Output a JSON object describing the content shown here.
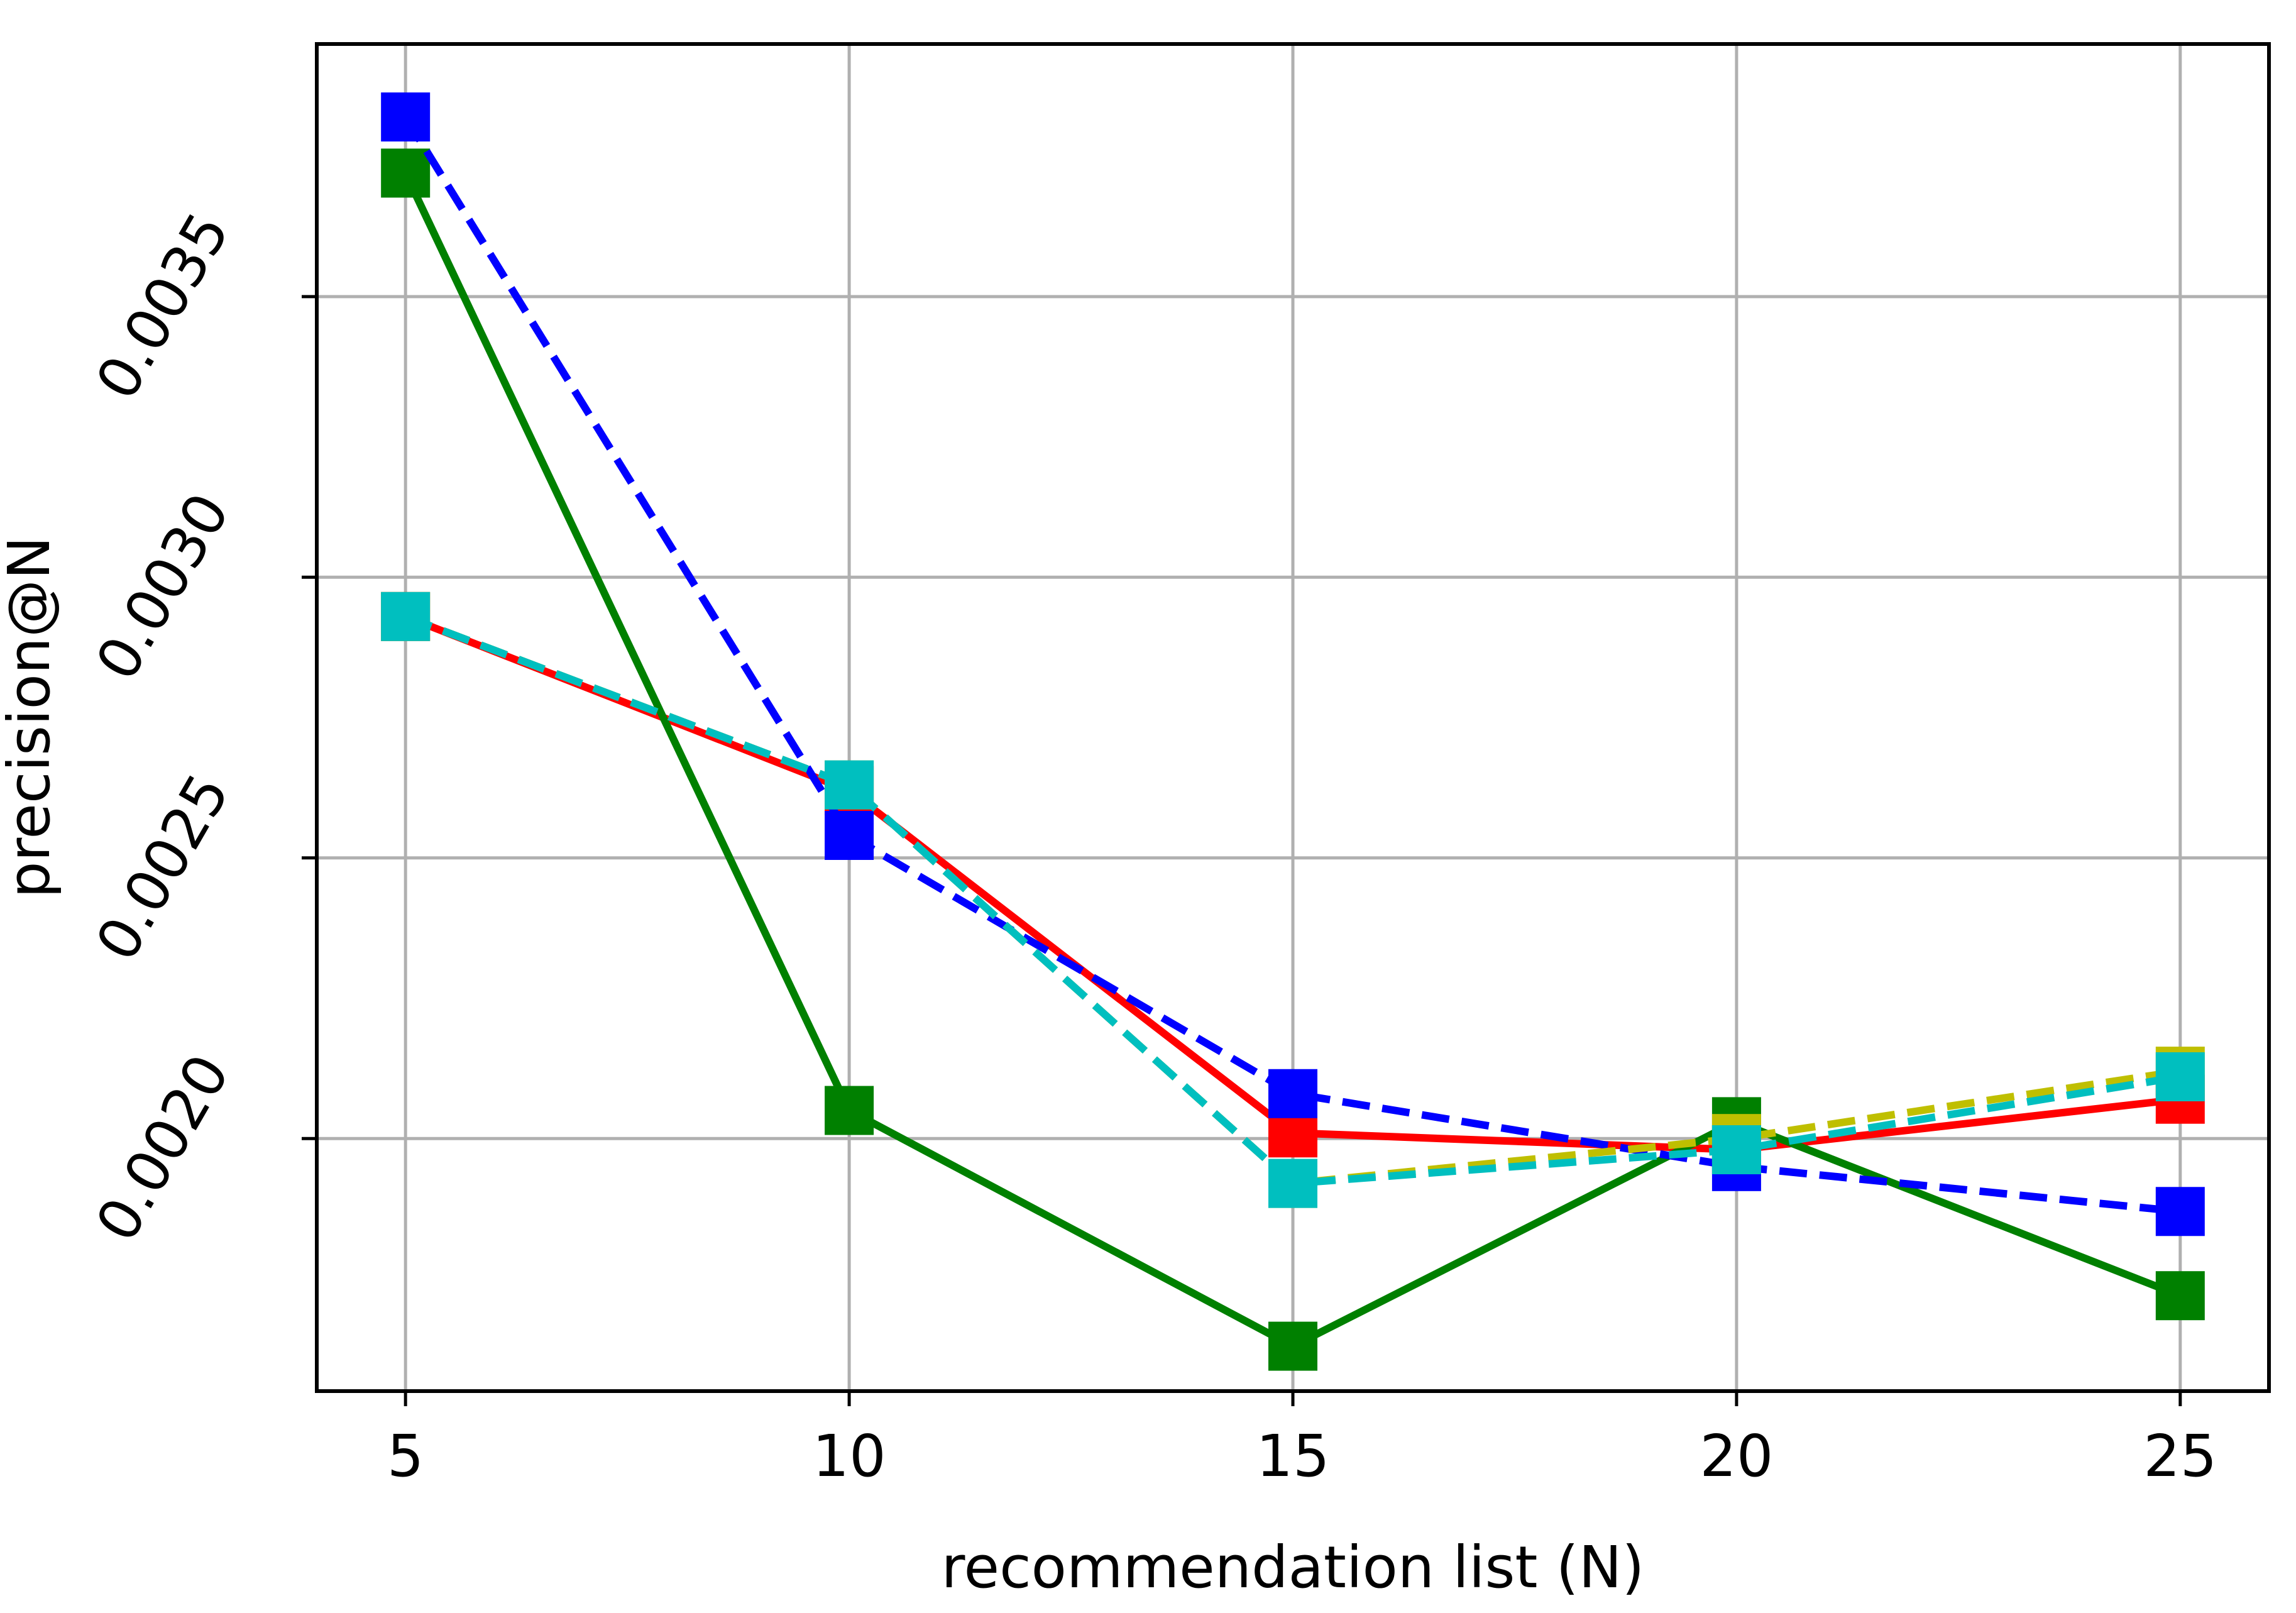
{
  "chart_data": {
    "type": "line",
    "title": "",
    "xlabel": "recommendation list (N)",
    "ylabel": "precision@N",
    "x": [
      5,
      10,
      15,
      20,
      25
    ],
    "xlim": [
      4,
      26
    ],
    "ylim": [
      0.00155,
      0.00395
    ],
    "x_ticks": [
      5,
      10,
      15,
      20,
      25
    ],
    "x_tick_labels": [
      "5",
      "10",
      "15",
      "20",
      "25"
    ],
    "y_ticks": [
      0.002,
      0.0025,
      0.003,
      0.0035
    ],
    "y_tick_labels": [
      "0.0020",
      "0.0025",
      "0.0030",
      "0.0035"
    ],
    "grid": true,
    "legend": "none",
    "series": [
      {
        "color": "#ff0000",
        "style": "solid",
        "marker": "square",
        "values": [
          0.00293,
          0.00262,
          0.00201,
          0.00198,
          0.00207
        ]
      },
      {
        "color": "#008000",
        "style": "solid",
        "marker": "square",
        "values": [
          0.00372,
          0.00205,
          0.00163,
          0.00203,
          0.00172
        ]
      },
      {
        "color": "#0000ff",
        "style": "dashed",
        "marker": "square",
        "values": [
          0.00382,
          0.00254,
          0.00208,
          0.00195,
          0.00187
        ]
      },
      {
        "color": "#bfbf00",
        "style": "dashed",
        "marker": "square",
        "values": [
          0.00293,
          0.00263,
          0.00192,
          0.002,
          0.00212
        ]
      },
      {
        "color": "#00bfbf",
        "style": "dashed",
        "marker": "square",
        "values": [
          0.00293,
          0.00263,
          0.00192,
          0.00198,
          0.00211
        ]
      }
    ]
  }
}
